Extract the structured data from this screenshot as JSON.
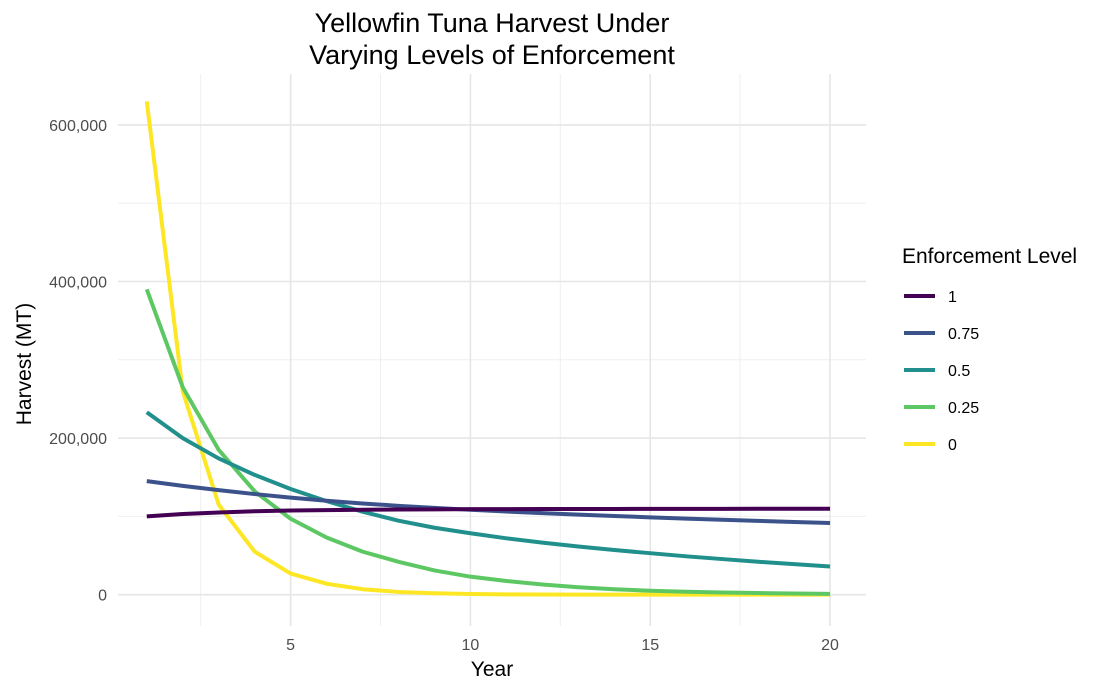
{
  "chart_data": {
    "type": "line",
    "title": "Yellowfin Tuna Harvest Under\nVarying Levels of Enforcement",
    "xlabel": "Year",
    "ylabel": "Harvest (MT)",
    "xlim": [
      0.2,
      21
    ],
    "ylim": [
      -40000,
      665000
    ],
    "x_ticks": [
      5,
      10,
      15,
      20
    ],
    "x_tick_labels": [
      "5",
      "10",
      "15",
      "20"
    ],
    "y_ticks": [
      0,
      200000,
      400000,
      600000
    ],
    "y_tick_labels": [
      "0",
      "200,000",
      "400,000",
      "600,000"
    ],
    "grid": true,
    "legend": {
      "title": "Enforcement Level",
      "position": "right"
    },
    "x": [
      1,
      2,
      3,
      4,
      5,
      6,
      7,
      8,
      9,
      10,
      11,
      12,
      13,
      14,
      15,
      16,
      17,
      18,
      19,
      20
    ],
    "series": [
      {
        "name": "1",
        "color": "#440154",
        "values": [
          100000,
          103000,
          105000,
          106500,
          107500,
          108000,
          108500,
          108800,
          109000,
          109200,
          109300,
          109400,
          109500,
          109500,
          109600,
          109600,
          109600,
          109700,
          109700,
          109700
        ]
      },
      {
        "name": "0.75",
        "color": "#3B528B",
        "values": [
          145000,
          139000,
          133500,
          128500,
          124000,
          120000,
          116500,
          113500,
          110800,
          108400,
          106200,
          104200,
          102300,
          100500,
          98800,
          97200,
          95700,
          94300,
          92900,
          91600
        ]
      },
      {
        "name": "0.5",
        "color": "#21908C",
        "values": [
          233000,
          200000,
          174000,
          153000,
          135000,
          119500,
          106000,
          94500,
          85500,
          78500,
          72000,
          66500,
          61500,
          57000,
          53000,
          49000,
          45500,
          42000,
          39000,
          36000
        ]
      },
      {
        "name": "0.25",
        "color": "#5DC863",
        "values": [
          390000,
          265000,
          185000,
          132000,
          97000,
          73000,
          55000,
          42000,
          31000,
          23000,
          17500,
          13000,
          9500,
          7000,
          5000,
          3800,
          2800,
          2100,
          1500,
          1100
        ]
      },
      {
        "name": "0",
        "color": "#FDE725",
        "values": [
          630000,
          260000,
          115000,
          55000,
          27000,
          14000,
          7000,
          3500,
          1800,
          900,
          450,
          220,
          110,
          60,
          30,
          15,
          8,
          4,
          2,
          1
        ]
      }
    ]
  }
}
